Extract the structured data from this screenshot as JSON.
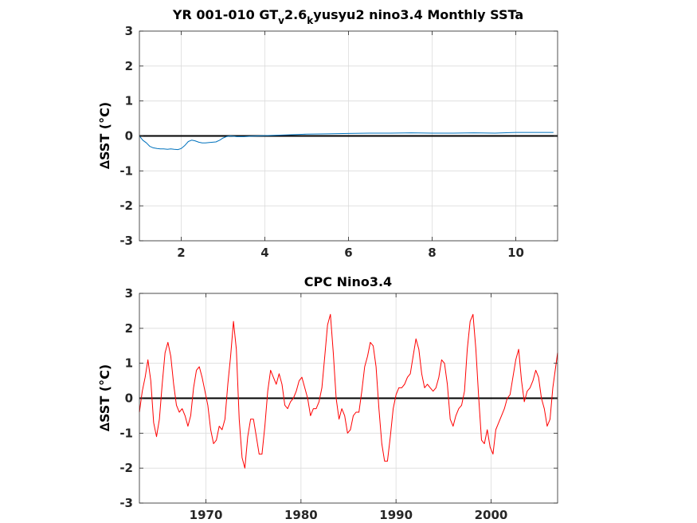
{
  "chart_data": [
    {
      "type": "line",
      "title_main": "YR 001-010 GT",
      "title_sub1": "v",
      "title_mid": "2.6",
      "title_sub2": "k",
      "title_rest": "yusyu2 nino3.4 Monthly SSTa",
      "ylabel": "∆SST (°C)",
      "xlim": [
        1,
        11
      ],
      "ylim": [
        -3,
        3
      ],
      "xticks": [
        2,
        4,
        6,
        8,
        10
      ],
      "yticks": [
        -3,
        -2,
        -1,
        0,
        1,
        2,
        3
      ],
      "grid": true,
      "zero_line": true,
      "series": [
        {
          "color": "#0072bd",
          "x": [
            1.0,
            1.08,
            1.17,
            1.25,
            1.33,
            1.42,
            1.5,
            1.58,
            1.67,
            1.75,
            1.83,
            1.92,
            2.0,
            2.08,
            2.17,
            2.25,
            2.33,
            2.42,
            2.5,
            2.58,
            2.67,
            2.75,
            2.83,
            2.92,
            3.0,
            3.08,
            3.17,
            3.25,
            3.33,
            3.5,
            3.67,
            3.83,
            4.0,
            4.5,
            5.0,
            5.5,
            6.0,
            6.5,
            7.0,
            7.5,
            8.0,
            8.5,
            9.0,
            9.5,
            10.0,
            10.5,
            10.9
          ],
          "y": [
            0.0,
            -0.12,
            -0.2,
            -0.3,
            -0.34,
            -0.36,
            -0.37,
            -0.37,
            -0.38,
            -0.37,
            -0.38,
            -0.39,
            -0.36,
            -0.28,
            -0.16,
            -0.12,
            -0.14,
            -0.18,
            -0.2,
            -0.2,
            -0.19,
            -0.18,
            -0.17,
            -0.12,
            -0.06,
            -0.02,
            0.0,
            -0.01,
            -0.02,
            -0.02,
            -0.01,
            0.0,
            0.01,
            0.03,
            0.05,
            0.06,
            0.07,
            0.08,
            0.08,
            0.09,
            0.08,
            0.08,
            0.09,
            0.08,
            0.1,
            0.1,
            0.1
          ]
        }
      ]
    },
    {
      "type": "line",
      "title": "CPC Nino3.4",
      "ylabel": "∆SST (°C)",
      "xlim": [
        1963,
        2007
      ],
      "ylim": [
        -3,
        3
      ],
      "xticks": [
        1970,
        1980,
        1990,
        2000
      ],
      "yticks": [
        -3,
        -2,
        -1,
        0,
        1,
        2,
        3
      ],
      "grid": true,
      "zero_line": true,
      "series": [
        {
          "color": "#ff0000",
          "x": [
            1963.0,
            1963.3,
            1963.6,
            1963.9,
            1964.2,
            1964.5,
            1964.8,
            1965.1,
            1965.4,
            1965.7,
            1966.0,
            1966.3,
            1966.6,
            1966.9,
            1967.2,
            1967.5,
            1967.8,
            1968.1,
            1968.4,
            1968.7,
            1969.0,
            1969.3,
            1969.6,
            1969.9,
            1970.2,
            1970.5,
            1970.8,
            1971.1,
            1971.4,
            1971.7,
            1972.0,
            1972.3,
            1972.6,
            1972.9,
            1973.2,
            1973.5,
            1973.8,
            1974.1,
            1974.4,
            1974.7,
            1975.0,
            1975.3,
            1975.6,
            1975.9,
            1976.2,
            1976.5,
            1976.8,
            1977.1,
            1977.4,
            1977.7,
            1978.0,
            1978.3,
            1978.6,
            1978.9,
            1979.2,
            1979.5,
            1979.8,
            1980.1,
            1980.4,
            1980.7,
            1981.0,
            1981.3,
            1981.6,
            1981.9,
            1982.2,
            1982.5,
            1982.8,
            1983.1,
            1983.4,
            1983.7,
            1984.0,
            1984.3,
            1984.6,
            1984.9,
            1985.2,
            1985.5,
            1985.8,
            1986.1,
            1986.4,
            1986.7,
            1987.0,
            1987.3,
            1987.6,
            1987.9,
            1988.2,
            1988.5,
            1988.8,
            1989.1,
            1989.4,
            1989.7,
            1990.0,
            1990.3,
            1990.6,
            1990.9,
            1991.2,
            1991.5,
            1991.8,
            1992.1,
            1992.4,
            1992.7,
            1993.0,
            1993.3,
            1993.6,
            1993.9,
            1994.2,
            1994.5,
            1994.8,
            1995.1,
            1995.4,
            1995.7,
            1996.0,
            1996.3,
            1996.6,
            1996.9,
            1997.2,
            1997.5,
            1997.8,
            1998.1,
            1998.4,
            1998.7,
            1999.0,
            1999.3,
            1999.6,
            1999.9,
            2000.2,
            2000.5,
            2000.8,
            2001.1,
            2001.4,
            2001.7,
            2002.0,
            2002.3,
            2002.6,
            2002.9,
            2003.2,
            2003.5,
            2003.8,
            2004.1,
            2004.4,
            2004.7,
            2005.0,
            2005.3,
            2005.6,
            2005.9,
            2006.2,
            2006.5,
            2006.8,
            2007.0
          ],
          "y": [
            -0.4,
            0.2,
            0.6,
            1.1,
            0.5,
            -0.7,
            -1.1,
            -0.6,
            0.4,
            1.3,
            1.6,
            1.2,
            0.4,
            -0.2,
            -0.4,
            -0.3,
            -0.5,
            -0.8,
            -0.5,
            0.3,
            0.8,
            0.9,
            0.6,
            0.2,
            -0.2,
            -0.9,
            -1.3,
            -1.2,
            -0.8,
            -0.9,
            -0.6,
            0.4,
            1.2,
            2.2,
            1.4,
            -0.6,
            -1.7,
            -2.0,
            -1.1,
            -0.6,
            -0.6,
            -1.1,
            -1.6,
            -1.6,
            -0.8,
            0.2,
            0.8,
            0.6,
            0.4,
            0.7,
            0.4,
            -0.2,
            -0.3,
            -0.1,
            0.0,
            0.2,
            0.5,
            0.6,
            0.3,
            0.0,
            -0.5,
            -0.3,
            -0.3,
            -0.1,
            0.3,
            1.2,
            2.1,
            2.4,
            1.3,
            0.0,
            -0.6,
            -0.3,
            -0.5,
            -1.0,
            -0.9,
            -0.5,
            -0.4,
            -0.4,
            0.2,
            0.9,
            1.2,
            1.6,
            1.5,
            0.9,
            -0.3,
            -1.3,
            -1.8,
            -1.8,
            -1.1,
            -0.3,
            0.1,
            0.3,
            0.3,
            0.4,
            0.6,
            0.7,
            1.2,
            1.7,
            1.4,
            0.7,
            0.3,
            0.4,
            0.3,
            0.2,
            0.3,
            0.6,
            1.1,
            1.0,
            0.4,
            -0.6,
            -0.8,
            -0.5,
            -0.3,
            -0.2,
            0.2,
            1.4,
            2.2,
            2.4,
            1.4,
            0.0,
            -1.2,
            -1.3,
            -0.9,
            -1.4,
            -1.6,
            -0.9,
            -0.7,
            -0.5,
            -0.3,
            0.0,
            0.1,
            0.6,
            1.1,
            1.4,
            0.5,
            -0.1,
            0.2,
            0.3,
            0.5,
            0.8,
            0.6,
            0.0,
            -0.3,
            -0.8,
            -0.6,
            0.3,
            0.9,
            1.3
          ]
        }
      ]
    }
  ]
}
